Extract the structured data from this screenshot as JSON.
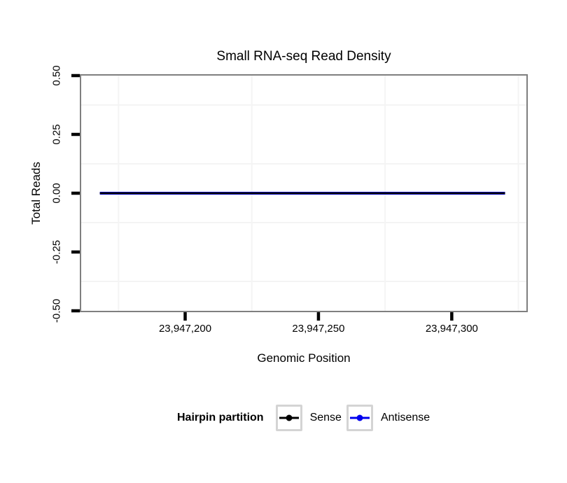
{
  "chart_data": {
    "type": "line",
    "title": "Small RNA-seq Read Density",
    "xlabel": "Genomic Position",
    "ylabel": "Total Reads",
    "xlim": [
      23947161,
      23947328
    ],
    "ylim": [
      -0.5,
      0.5
    ],
    "x_ticks": [
      23947200,
      23947250,
      23947300
    ],
    "x_tick_labels": [
      "23,947,200",
      "23,947,250",
      "23,947,300"
    ],
    "y_ticks": [
      0.5,
      0.25,
      0.0,
      -0.25,
      -0.5
    ],
    "y_tick_labels": [
      "0.50",
      "0.25",
      "0.00",
      "-0.25",
      "-0.50"
    ],
    "x_minor_gridlines": [
      23947175,
      23947225,
      23947275,
      23947325
    ],
    "y_minor_gridlines": [
      0.375,
      0.125,
      -0.125,
      -0.375
    ],
    "grid": "minor-only",
    "legend_position": "bottom",
    "legend": {
      "title": "Hairpin partition",
      "items": [
        {
          "label": "Sense",
          "color": "#000000",
          "stroke_width": 2.4
        },
        {
          "label": "Antisense",
          "color": "#0000EE",
          "stroke_width": 4
        }
      ]
    },
    "series": [
      {
        "name": "Sense",
        "color": "#000000",
        "stroke_width": 2.4,
        "x": [
          23947168,
          23947320
        ],
        "y": [
          0,
          0
        ]
      },
      {
        "name": "Antisense",
        "color": "#0000EE",
        "stroke_width": 4,
        "x": [
          23947168,
          23947320
        ],
        "y": [
          0,
          0
        ]
      }
    ]
  },
  "colors": {
    "panel_border": "#7f7f7f",
    "panel_background": "#ffffff",
    "tick": "#000000",
    "grid_minor": "#f4f4f4",
    "text": "#000000"
  }
}
